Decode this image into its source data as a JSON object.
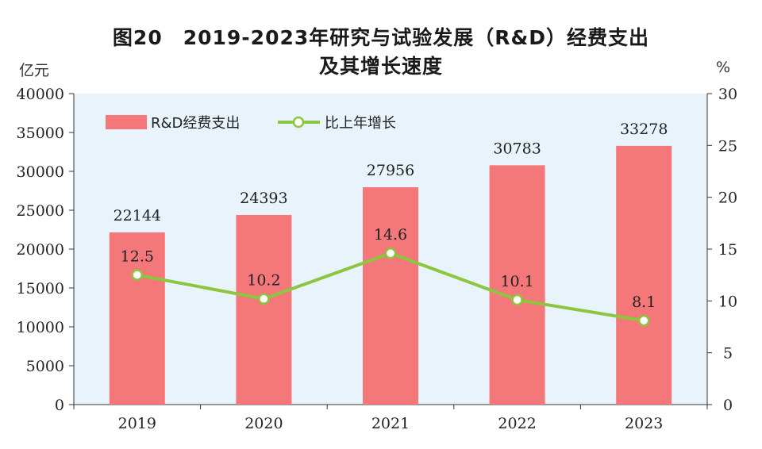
{
  "title_line1": "图20　2019-2023年研究与试验发展（R&D）经费支出",
  "title_line2": "及其增长速度",
  "left_unit": "亿元",
  "right_unit": "%",
  "colors": {
    "bar": "#f4777a",
    "line": "#8cc63f",
    "plot_bg": "#e9f3fb",
    "marker_fill": "#ffffff"
  },
  "chart_data": {
    "type": "bar",
    "categories": [
      "2019",
      "2020",
      "2021",
      "2022",
      "2023"
    ],
    "series": [
      {
        "name": "R&D经费支出",
        "type": "bar",
        "axis": "left",
        "values": [
          22144,
          24393,
          27956,
          30783,
          33278
        ]
      },
      {
        "name": "比上年增长",
        "type": "line",
        "axis": "right",
        "values": [
          12.5,
          10.2,
          14.6,
          10.1,
          8.1
        ]
      }
    ],
    "left_axis": {
      "ylim": [
        0,
        40000
      ],
      "ticks": [
        "0",
        "5000",
        "10000",
        "15000",
        "20000",
        "25000",
        "30000",
        "35000",
        "40000"
      ]
    },
    "right_axis": {
      "ylim": [
        0,
        30
      ],
      "ticks": [
        "0",
        "5",
        "10",
        "15",
        "20",
        "25",
        "30"
      ]
    },
    "bar_labels": [
      "22144",
      "24393",
      "27956",
      "30783",
      "33278"
    ],
    "line_labels": [
      "12.5",
      "10.2",
      "14.6",
      "10.1",
      "8.1"
    ],
    "legend_position": "top-left"
  }
}
